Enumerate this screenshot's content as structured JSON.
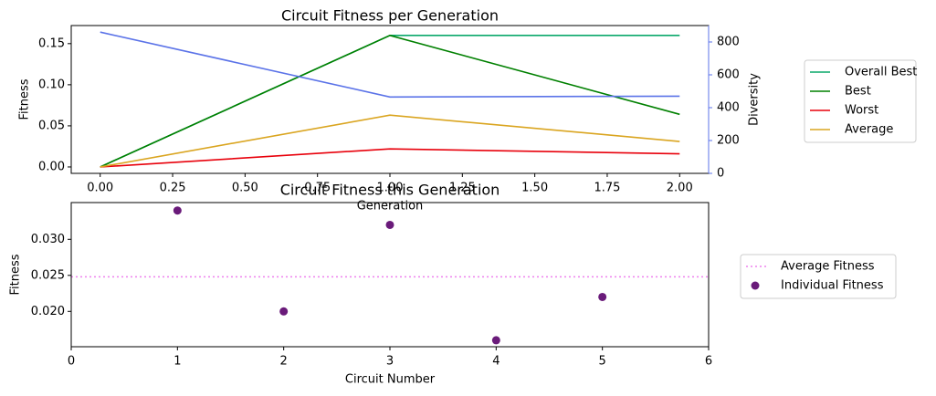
{
  "chart_data": [
    {
      "type": "line",
      "title": "Circuit Fitness per Generation",
      "xlabel": "Generation",
      "ylabel": "Fitness",
      "y2label": "Diversity",
      "y2color": "#5b73e8",
      "x": [
        0,
        1,
        2
      ],
      "series": [
        {
          "name": "Overall Best",
          "color": "#0aa86a",
          "values": [
            0,
            0.16,
            0.16
          ]
        },
        {
          "name": "Best",
          "color": "#008000",
          "values": [
            0,
            0.16,
            0.064
          ]
        },
        {
          "name": "Worst",
          "color": "#e8000b",
          "values": [
            0,
            0.022,
            0.016
          ]
        },
        {
          "name": "Average",
          "color": "#daa520",
          "values": [
            0,
            0.063,
            0.031
          ]
        },
        {
          "color": "#5b73e8",
          "axis": "y2",
          "values": [
            860,
            465,
            470
          ]
        }
      ],
      "xlim": [
        -0.1,
        2.1
      ],
      "xticks": [
        {
          "value": 0,
          "label": "0.00"
        },
        {
          "value": 0.25,
          "label": "0.25"
        },
        {
          "value": 0.5,
          "label": "0.50"
        },
        {
          "value": 0.75,
          "label": "0.75"
        },
        {
          "value": 1,
          "label": "1.00"
        },
        {
          "value": 1.25,
          "label": "1.25"
        },
        {
          "value": 1.5,
          "label": "1.50"
        },
        {
          "value": 1.75,
          "label": "1.75"
        },
        {
          "value": 2,
          "label": "2.00"
        }
      ],
      "ylim": [
        -0.0078,
        0.172
      ],
      "yticks": [
        {
          "value": 0,
          "label": "0.00"
        },
        {
          "value": 0.05,
          "label": "0.05"
        },
        {
          "value": 0.1,
          "label": "0.10"
        },
        {
          "value": 0.15,
          "label": "0.15"
        }
      ],
      "y2lim": [
        0,
        900
      ],
      "y2ticks": [
        0,
        200,
        400,
        600,
        800
      ],
      "legend": "outside right"
    },
    {
      "type": "scatter",
      "title": "Circuit Fitness this Generation",
      "xlabel": "Circuit Number",
      "ylabel": "Fitness",
      "x": [
        1,
        2,
        3,
        4,
        5
      ],
      "lines": [
        {
          "name": "Average Fitness",
          "value": 0.0248,
          "color": "#ee82ee",
          "style": "dotted"
        }
      ],
      "series": [
        {
          "name": "Individual Fitness",
          "color": "#6a1b7a",
          "values": [
            0.034,
            0.02,
            0.032,
            0.016,
            0.022
          ]
        }
      ],
      "xlim": [
        0,
        6
      ],
      "xticks": [
        0,
        1,
        2,
        3,
        4,
        5,
        6
      ],
      "ylim": [
        0.0151,
        0.0351
      ],
      "yticks": [
        {
          "value": 0.02,
          "label": "0.020"
        },
        {
          "value": 0.025,
          "label": "0.025"
        },
        {
          "value": 0.03,
          "label": "0.030"
        }
      ],
      "legend": "outside right"
    }
  ]
}
